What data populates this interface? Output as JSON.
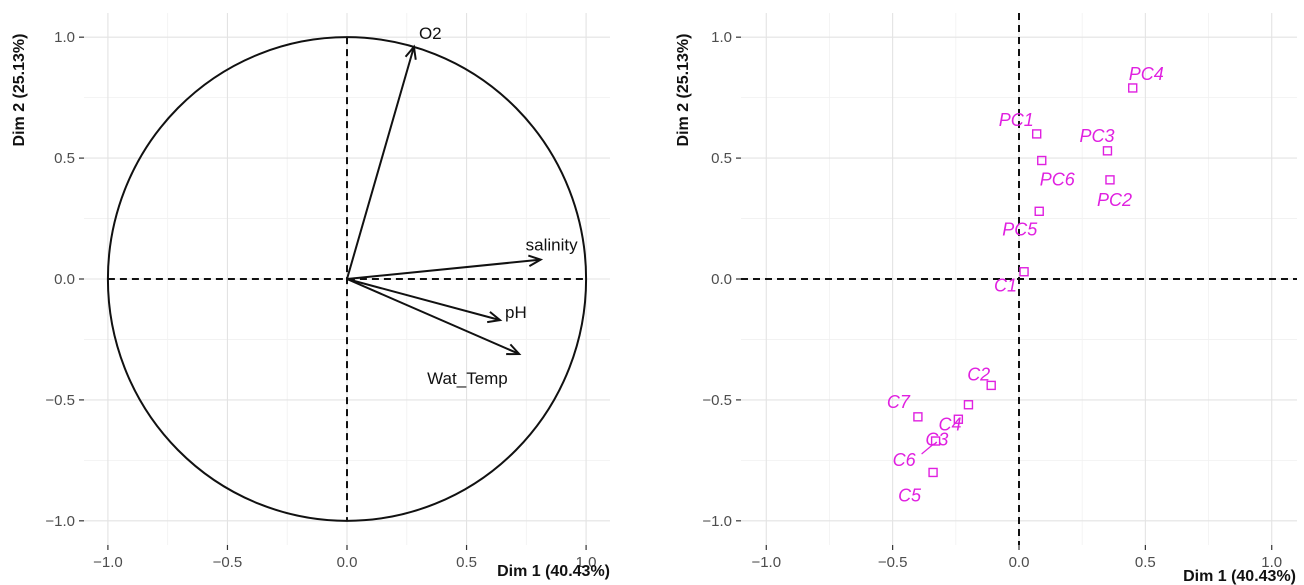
{
  "chart_data": [
    {
      "type": "scatter",
      "subtype": "pca-variables-correlation-circle",
      "xlabel": "Dim 1 (40.43%)",
      "ylabel": "Dim 2 (25.13%)",
      "xlim": [
        -1.1,
        1.1
      ],
      "ylim": [
        -1.1,
        1.1
      ],
      "xticks": [
        "-1.0",
        "-0.5",
        "0.0",
        "0.5",
        "1.0"
      ],
      "yticks": [
        "-1.0",
        "-0.5",
        "0.0",
        "0.5",
        "1.0"
      ],
      "grid": true,
      "unit_circle": true,
      "arrows": [
        {
          "name": "O2",
          "x": 0.28,
          "y": 0.96
        },
        {
          "name": "salinity",
          "x": 0.81,
          "y": 0.08
        },
        {
          "name": "pH",
          "x": 0.64,
          "y": -0.17
        },
        {
          "name": "Wat_Temp",
          "x": 0.72,
          "y": -0.31
        }
      ]
    },
    {
      "type": "scatter",
      "subtype": "pca-individuals",
      "xlabel": "Dim 1 (40.43%)",
      "ylabel": "Dim 2 (25.13%)",
      "xlim": [
        -1.1,
        1.1
      ],
      "ylim": [
        -1.1,
        1.1
      ],
      "xticks": [
        "-1.0",
        "-0.5",
        "0.0",
        "0.5",
        "1.0"
      ],
      "yticks": [
        "-1.0",
        "-0.5",
        "0.0",
        "0.5",
        "1.0"
      ],
      "grid": true,
      "point_color": "#e020e0",
      "points": [
        {
          "name": "PC4",
          "x": 0.45,
          "y": 0.79
        },
        {
          "name": "PC1",
          "x": 0.07,
          "y": 0.6
        },
        {
          "name": "PC3",
          "x": 0.35,
          "y": 0.53
        },
        {
          "name": "PC6",
          "x": 0.09,
          "y": 0.49
        },
        {
          "name": "PC2",
          "x": 0.36,
          "y": 0.41
        },
        {
          "name": "PC5",
          "x": 0.08,
          "y": 0.28
        },
        {
          "name": "C1",
          "x": 0.02,
          "y": 0.03
        },
        {
          "name": "C2",
          "x": -0.11,
          "y": -0.44
        },
        {
          "name": "C4",
          "x": -0.2,
          "y": -0.52
        },
        {
          "name": "C7",
          "x": -0.4,
          "y": -0.57
        },
        {
          "name": "C3",
          "x": -0.24,
          "y": -0.58
        },
        {
          "name": "C6",
          "x": -0.33,
          "y": -0.67
        },
        {
          "name": "C5",
          "x": -0.34,
          "y": -0.8
        }
      ]
    }
  ]
}
